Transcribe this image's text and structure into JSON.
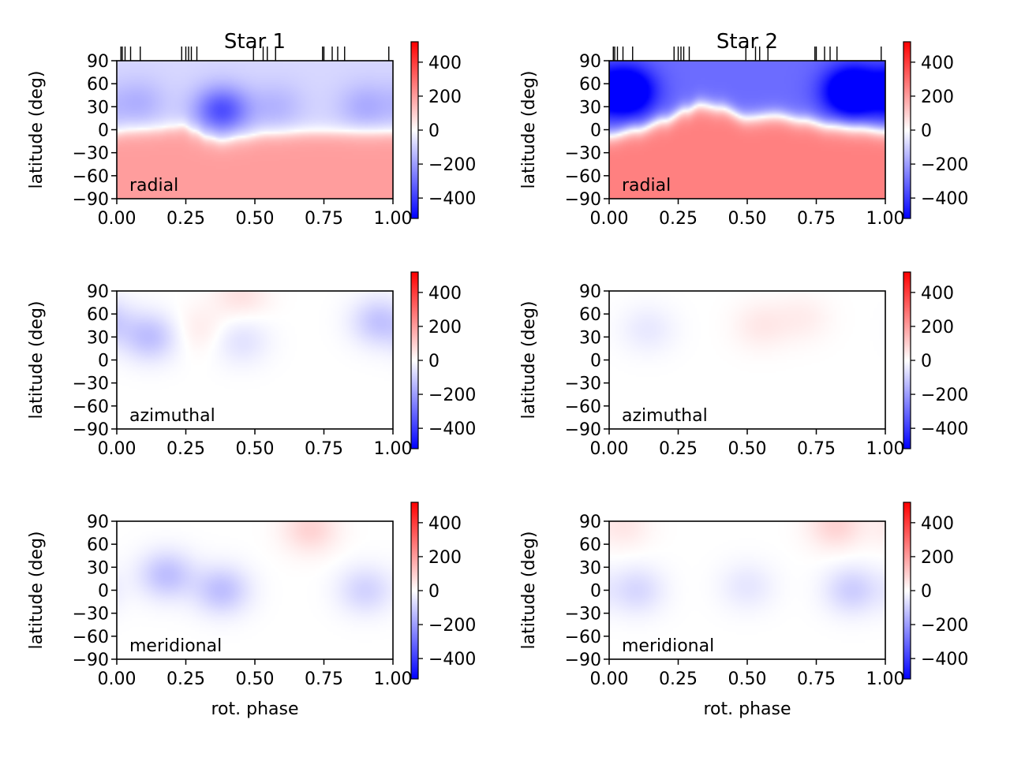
{
  "figure": {
    "columns": [
      {
        "title": "Star 1",
        "phase_ticks": [
          0.015,
          0.02,
          0.03,
          0.05,
          0.085,
          0.235,
          0.25,
          0.26,
          0.27,
          0.29,
          0.495,
          0.53,
          0.545,
          0.575,
          0.745,
          0.75,
          0.78,
          0.8,
          0.825,
          0.985
        ]
      },
      {
        "title": "Star 2",
        "phase_ticks": [
          0.015,
          0.02,
          0.03,
          0.05,
          0.085,
          0.235,
          0.25,
          0.26,
          0.27,
          0.29,
          0.495,
          0.53,
          0.545,
          0.575,
          0.745,
          0.75,
          0.78,
          0.8,
          0.825,
          0.985
        ]
      }
    ],
    "xlabel": "rot. phase",
    "ylabel": "latitude (deg)"
  },
  "chart_data": [
    {
      "type": "heatmap",
      "column": "Star 1",
      "component": "radial",
      "x": [
        0.0,
        1.0
      ],
      "y": [
        -90,
        90
      ],
      "xlim": [
        0,
        1
      ],
      "ylim": [
        -90,
        90
      ],
      "xticks": [
        "0.00",
        "0.25",
        "0.50",
        "0.75",
        "1.00"
      ],
      "yticks": [
        "90",
        "60",
        "30",
        "0",
        "−30",
        "−60",
        "−90"
      ],
      "colorbar": {
        "range": [
          -520,
          520
        ],
        "ticks": [
          "400",
          "200",
          "0",
          "−200",
          "−400"
        ],
        "cmap": "bwr"
      },
      "zero_line": [
        [
          0.0,
          0
        ],
        [
          0.05,
          2
        ],
        [
          0.1,
          3
        ],
        [
          0.15,
          4
        ],
        [
          0.2,
          6
        ],
        [
          0.24,
          8
        ],
        [
          0.28,
          2
        ],
        [
          0.33,
          -6
        ],
        [
          0.38,
          -10
        ],
        [
          0.45,
          -6
        ],
        [
          0.55,
          -2
        ],
        [
          0.7,
          0
        ],
        [
          0.85,
          0
        ],
        [
          1.0,
          0
        ]
      ],
      "north_value": -80,
      "south_value": 200,
      "features": [
        {
          "phase": 0.38,
          "lat": 25,
          "value": -280
        },
        {
          "phase": 0.08,
          "lat": 35,
          "value": -80
        },
        {
          "phase": 0.9,
          "lat": 30,
          "value": -90
        },
        {
          "phase": 0.58,
          "lat": 30,
          "value": -70
        }
      ]
    },
    {
      "type": "heatmap",
      "column": "Star 1",
      "component": "azimuthal",
      "x": [
        0.0,
        1.0
      ],
      "y": [
        -90,
        90
      ],
      "xlim": [
        0,
        1
      ],
      "ylim": [
        -90,
        90
      ],
      "xticks": [
        "0.00",
        "0.25",
        "0.50",
        "0.75",
        "1.00"
      ],
      "yticks": [
        "90",
        "60",
        "30",
        "0",
        "−30",
        "−60",
        "−90"
      ],
      "colorbar": {
        "range": [
          -520,
          520
        ],
        "ticks": [
          "400",
          "200",
          "0",
          "−200",
          "−400"
        ],
        "cmap": "bwr"
      },
      "features": [
        {
          "phase": 0.12,
          "lat": 30,
          "value": -130
        },
        {
          "phase": 0.95,
          "lat": 50,
          "value": -120
        },
        {
          "phase": 0.45,
          "lat": 25,
          "value": -60
        },
        {
          "phase": 0.45,
          "lat": 85,
          "value": 60
        },
        {
          "phase": 0.3,
          "lat": 40,
          "value": 40
        }
      ]
    },
    {
      "type": "heatmap",
      "column": "Star 1",
      "component": "meridional",
      "x": [
        0.0,
        1.0
      ],
      "y": [
        -90,
        90
      ],
      "xlim": [
        0,
        1
      ],
      "ylim": [
        -90,
        90
      ],
      "xticks": [
        "0.00",
        "0.25",
        "0.50",
        "0.75",
        "1.00"
      ],
      "yticks": [
        "90",
        "60",
        "30",
        "0",
        "−30",
        "−60",
        "−90"
      ],
      "colorbar": {
        "range": [
          -520,
          520
        ],
        "ticks": [
          "400",
          "200",
          "0",
          "−200",
          "−400"
        ],
        "cmap": "bwr"
      },
      "features": [
        {
          "phase": 0.18,
          "lat": 20,
          "value": -130
        },
        {
          "phase": 0.38,
          "lat": 0,
          "value": -130
        },
        {
          "phase": 0.9,
          "lat": 0,
          "value": -90
        },
        {
          "phase": 0.7,
          "lat": 80,
          "value": 90
        }
      ]
    },
    {
      "type": "heatmap",
      "column": "Star 2",
      "component": "radial",
      "x": [
        0.0,
        1.0
      ],
      "y": [
        -90,
        90
      ],
      "xlim": [
        0,
        1
      ],
      "ylim": [
        -90,
        90
      ],
      "xticks": [
        "0.00",
        "0.25",
        "0.50",
        "0.75",
        "1.00"
      ],
      "yticks": [
        "90",
        "60",
        "30",
        "0",
        "−30",
        "−60",
        "−90"
      ],
      "colorbar": {
        "range": [
          -520,
          520
        ],
        "ticks": [
          "400",
          "200",
          "0",
          "−200",
          "−400"
        ],
        "cmap": "bwr"
      },
      "zero_line": [
        [
          0.0,
          -8
        ],
        [
          0.1,
          0
        ],
        [
          0.2,
          12
        ],
        [
          0.28,
          25
        ],
        [
          0.33,
          32
        ],
        [
          0.4,
          28
        ],
        [
          0.5,
          15
        ],
        [
          0.6,
          18
        ],
        [
          0.7,
          12
        ],
        [
          0.8,
          5
        ],
        [
          0.9,
          2
        ],
        [
          1.0,
          -2
        ]
      ],
      "north_value": -300,
      "south_value": 260,
      "features": [
        {
          "phase": 0.06,
          "lat": 50,
          "value": -440
        },
        {
          "phase": 0.88,
          "lat": 50,
          "value": -460
        }
      ]
    },
    {
      "type": "heatmap",
      "column": "Star 2",
      "component": "azimuthal",
      "x": [
        0.0,
        1.0
      ],
      "y": [
        -90,
        90
      ],
      "xlim": [
        0,
        1
      ],
      "ylim": [
        -90,
        90
      ],
      "xticks": [
        "0.00",
        "0.25",
        "0.50",
        "0.75",
        "1.00"
      ],
      "yticks": [
        "90",
        "60",
        "30",
        "0",
        "−30",
        "−60",
        "−90"
      ],
      "colorbar": {
        "range": [
          -520,
          520
        ],
        "ticks": [
          "400",
          "200",
          "0",
          "−200",
          "−400"
        ],
        "cmap": "bwr"
      },
      "features": [
        {
          "phase": 0.14,
          "lat": 40,
          "value": -45
        },
        {
          "phase": 0.55,
          "lat": 45,
          "value": 45
        },
        {
          "phase": 0.7,
          "lat": 55,
          "value": 35
        }
      ]
    },
    {
      "type": "heatmap",
      "column": "Star 2",
      "component": "meridional",
      "x": [
        0.0,
        1.0
      ],
      "y": [
        -90,
        90
      ],
      "xlim": [
        0,
        1
      ],
      "ylim": [
        -90,
        90
      ],
      "xticks": [
        "0.00",
        "0.25",
        "0.50",
        "0.75",
        "1.00"
      ],
      "yticks": [
        "90",
        "60",
        "30",
        "0",
        "−30",
        "−60",
        "−90"
      ],
      "colorbar": {
        "range": [
          -520,
          520
        ],
        "ticks": [
          "400",
          "200",
          "0",
          "−200",
          "−400"
        ],
        "cmap": "bwr"
      },
      "features": [
        {
          "phase": 0.1,
          "lat": 0,
          "value": -80
        },
        {
          "phase": 0.88,
          "lat": 0,
          "value": -100
        },
        {
          "phase": 0.5,
          "lat": 5,
          "value": -50
        },
        {
          "phase": 0.82,
          "lat": 85,
          "value": 90
        },
        {
          "phase": 0.05,
          "lat": 85,
          "value": 50
        }
      ]
    }
  ]
}
